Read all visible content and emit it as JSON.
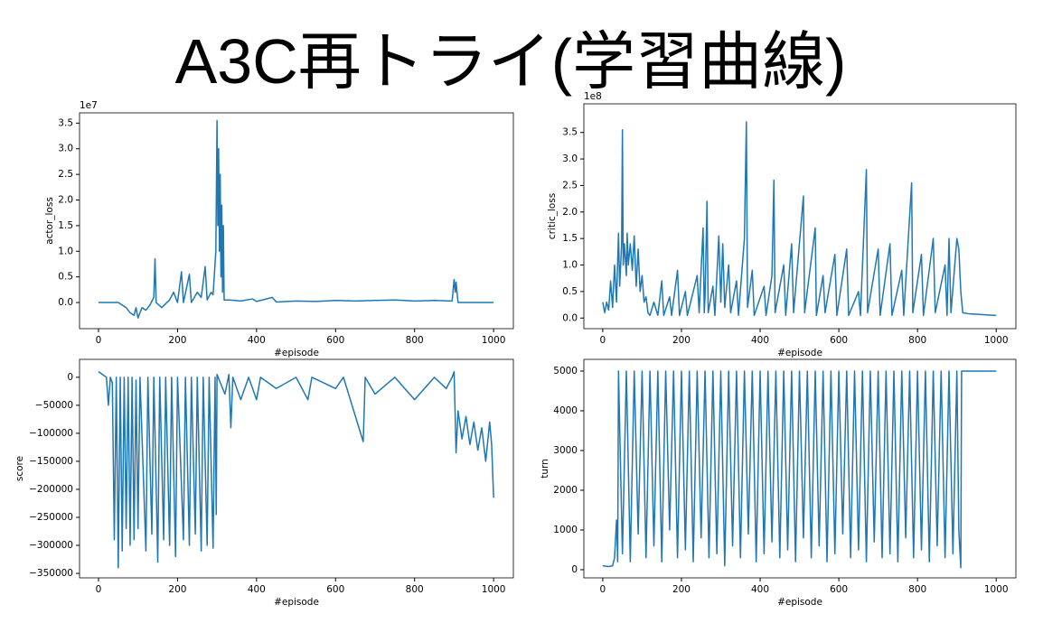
{
  "title": "A3C再トライ(学習曲線)",
  "chart_data": [
    {
      "type": "line",
      "xlabel": "#episode",
      "ylabel": "actor_loss",
      "y_offset_label": "1e7",
      "color": "#1f77b4",
      "xlim": [
        -48,
        1050
      ],
      "xticks": [
        0,
        200,
        400,
        600,
        800,
        1000
      ],
      "ylim": [
        -0.51,
        3.7
      ],
      "yticks": [
        {
          "value": 0,
          "label": "0.0"
        },
        {
          "value": 0.5,
          "label": "0.5"
        },
        {
          "value": 1,
          "label": "1.0"
        },
        {
          "value": 1.5,
          "label": "1.5"
        },
        {
          "value": 2,
          "label": "2.0"
        },
        {
          "value": 2.5,
          "label": "2.5"
        },
        {
          "value": 3,
          "label": "3.0"
        },
        {
          "value": 3.5,
          "label": "3.5"
        }
      ],
      "x": [
        0,
        50,
        70,
        80,
        90,
        95,
        100,
        110,
        120,
        130,
        140,
        143,
        146,
        160,
        180,
        190,
        200,
        210,
        215,
        230,
        235,
        250,
        260,
        270,
        275,
        285,
        290,
        297,
        300,
        302,
        304,
        306,
        308,
        310,
        312,
        314,
        316,
        318,
        330,
        360,
        390,
        400,
        420,
        440,
        450,
        500,
        550,
        600,
        650,
        700,
        750,
        800,
        850,
        895,
        900,
        903,
        905,
        908,
        910,
        1000
      ],
      "values": [
        0,
        0,
        -0.1,
        -0.2,
        -0.25,
        -0.1,
        -0.3,
        -0.1,
        -0.15,
        -0.05,
        0.1,
        0.85,
        0,
        -0.1,
        0.05,
        0.2,
        0,
        0.6,
        0,
        0.55,
        0,
        0.2,
        0.1,
        0.7,
        0.05,
        0.2,
        0.15,
        1.0,
        3.55,
        1.5,
        3.0,
        1.0,
        2.5,
        0.5,
        1.9,
        0.2,
        1.5,
        0.05,
        0.05,
        0.03,
        0.07,
        0.02,
        0.06,
        0.1,
        0.01,
        0.03,
        0.02,
        0.04,
        0.03,
        0.04,
        0.05,
        0.03,
        0.04,
        0.03,
        0.45,
        0.2,
        0.4,
        0.15,
        0,
        0
      ]
    },
    {
      "type": "line",
      "xlabel": "#episode",
      "ylabel": "critic_loss",
      "y_offset_label": "1e8",
      "color": "#1f77b4",
      "xlim": [
        -48,
        1050
      ],
      "xticks": [
        0,
        200,
        400,
        600,
        800,
        1000
      ],
      "ylim": [
        -0.2,
        4.04
      ],
      "yticks": [
        {
          "value": 0,
          "label": "0.0"
        },
        {
          "value": 0.5,
          "label": "0.5"
        },
        {
          "value": 1,
          "label": "1.0"
        },
        {
          "value": 1.5,
          "label": "1.5"
        },
        {
          "value": 2,
          "label": "2.0"
        },
        {
          "value": 2.5,
          "label": "2.5"
        },
        {
          "value": 3,
          "label": "3.0"
        },
        {
          "value": 3.5,
          "label": "3.5"
        }
      ],
      "x": [
        0,
        5,
        10,
        15,
        20,
        25,
        30,
        35,
        40,
        43,
        48,
        50,
        52,
        55,
        60,
        62,
        65,
        70,
        75,
        80,
        85,
        90,
        95,
        100,
        105,
        110,
        115,
        120,
        130,
        140,
        150,
        155,
        170,
        175,
        190,
        195,
        210,
        215,
        240,
        245,
        255,
        258,
        260,
        265,
        268,
        280,
        285,
        295,
        300,
        305,
        310,
        320,
        325,
        340,
        345,
        360,
        365,
        368,
        380,
        385,
        410,
        415,
        430,
        435,
        438,
        460,
        465,
        480,
        485,
        510,
        513,
        540,
        543,
        560,
        565,
        590,
        595,
        620,
        625,
        650,
        655,
        670,
        673,
        700,
        705,
        730,
        735,
        760,
        765,
        785,
        788,
        810,
        815,
        840,
        845,
        870,
        875,
        880,
        885,
        900,
        905,
        910,
        915,
        930,
        1000
      ],
      "values": [
        0.3,
        0.1,
        0.3,
        0.15,
        0.7,
        0.2,
        1.0,
        0.3,
        1.6,
        0.6,
        1.4,
        3.55,
        1.0,
        1.4,
        0.8,
        1.6,
        1.0,
        1.4,
        0.9,
        1.55,
        0.6,
        1.3,
        0.5,
        0.8,
        0.3,
        0.4,
        0.1,
        0.05,
        0.3,
        0.05,
        0.7,
        0.05,
        0.4,
        0.05,
        0.9,
        0.05,
        0.5,
        0.05,
        0.8,
        0.1,
        1.7,
        0.1,
        0.4,
        2.2,
        0.1,
        0.6,
        0.05,
        1.55,
        0.3,
        1.4,
        0.2,
        1.0,
        0.1,
        0.7,
        0.05,
        1.5,
        3.7,
        0.2,
        0.9,
        0.05,
        0.6,
        0.05,
        0.8,
        2.6,
        0.1,
        1.0,
        0.05,
        1.4,
        0.1,
        2.3,
        0.1,
        1.7,
        0.05,
        0.8,
        0.1,
        1.2,
        0.05,
        1.3,
        0.05,
        0.5,
        0.05,
        2.8,
        0.1,
        1.3,
        0.05,
        1.4,
        0.05,
        0.9,
        0.05,
        2.55,
        0.1,
        1.2,
        0.05,
        1.5,
        0.1,
        1.0,
        0.05,
        1.5,
        0.1,
        1.5,
        1.3,
        0.5,
        0.1,
        0.08,
        0.05
      ]
    },
    {
      "type": "line",
      "xlabel": "#episode",
      "ylabel": "score",
      "color": "#1f77b4",
      "xlim": [
        -48,
        1050
      ],
      "xticks": [
        0,
        200,
        400,
        600,
        800,
        1000
      ],
      "ylim": [
        -358000,
        32000
      ],
      "yticks": [
        0,
        {
          "value": -50000,
          "label": "−50000"
        },
        {
          "value": -100000,
          "label": "−100000"
        },
        {
          "value": -150000,
          "label": "−150000"
        },
        {
          "value": -200000,
          "label": "−200000"
        },
        {
          "value": -250000,
          "label": "−250000"
        },
        {
          "value": -300000,
          "label": "−300000"
        },
        {
          "value": -350000,
          "label": "−350000"
        }
      ],
      "x": [
        0,
        10,
        20,
        25,
        30,
        35,
        40,
        45,
        50,
        55,
        60,
        65,
        70,
        75,
        80,
        85,
        90,
        95,
        100,
        105,
        120,
        125,
        135,
        140,
        150,
        155,
        165,
        170,
        180,
        185,
        195,
        200,
        215,
        220,
        230,
        235,
        245,
        250,
        260,
        265,
        275,
        280,
        290,
        295,
        298,
        300,
        320,
        330,
        335,
        340,
        360,
        380,
        400,
        410,
        450,
        500,
        530,
        540,
        600,
        620,
        670,
        675,
        700,
        750,
        800,
        850,
        880,
        895,
        900,
        905,
        910,
        920,
        930,
        940,
        950,
        960,
        970,
        980,
        990,
        995,
        1000
      ],
      "values": [
        10000,
        5000,
        0,
        -50000,
        0,
        -10000,
        -290000,
        0,
        -340000,
        0,
        -310000,
        0,
        -270000,
        0,
        -300000,
        0,
        -290000,
        -5000,
        -270000,
        0,
        -310000,
        0,
        -280000,
        0,
        -330000,
        0,
        -290000,
        0,
        -300000,
        0,
        -320000,
        0,
        -290000,
        0,
        -300000,
        0,
        -280000,
        0,
        -310000,
        0,
        -300000,
        0,
        -305000,
        0,
        -245000,
        5000,
        -30000,
        5000,
        -90000,
        0,
        -40000,
        0,
        -40000,
        0,
        -20000,
        0,
        -40000,
        0,
        -20000,
        0,
        -115000,
        0,
        -30000,
        0,
        -40000,
        0,
        -20000,
        0,
        10000,
        -135000,
        -60000,
        -110000,
        -70000,
        -120000,
        -80000,
        -130000,
        -90000,
        -150000,
        -80000,
        -120000,
        -215000
      ]
    },
    {
      "type": "line",
      "xlabel": "#episode",
      "ylabel": "turn",
      "color": "#1f77b4",
      "xlim": [
        -48,
        1050
      ],
      "xticks": [
        0,
        200,
        400,
        600,
        800,
        1000
      ],
      "ylim": [
        -205,
        5295
      ],
      "yticks": [
        0,
        1000,
        2000,
        3000,
        4000,
        5000
      ],
      "x": [
        0,
        15,
        25,
        30,
        35,
        38,
        40,
        50,
        60,
        70,
        80,
        90,
        100,
        110,
        120,
        130,
        140,
        150,
        160,
        170,
        180,
        190,
        200,
        210,
        220,
        230,
        240,
        250,
        260,
        270,
        280,
        290,
        300,
        310,
        320,
        330,
        340,
        350,
        360,
        370,
        380,
        390,
        400,
        410,
        420,
        430,
        440,
        450,
        460,
        470,
        480,
        490,
        500,
        510,
        520,
        530,
        540,
        550,
        560,
        570,
        580,
        590,
        600,
        610,
        620,
        630,
        640,
        650,
        660,
        670,
        680,
        690,
        700,
        710,
        720,
        730,
        740,
        750,
        760,
        770,
        780,
        790,
        800,
        810,
        820,
        830,
        840,
        850,
        860,
        870,
        880,
        890,
        900,
        905,
        910,
        912,
        1000
      ],
      "values": [
        100,
        80,
        100,
        300,
        1250,
        200,
        5000,
        400,
        5000,
        200,
        5000,
        900,
        5000,
        300,
        5000,
        600,
        5000,
        200,
        5000,
        1000,
        5000,
        300,
        5000,
        500,
        5000,
        200,
        5000,
        800,
        5000,
        300,
        5000,
        400,
        5000,
        100,
        5000,
        600,
        5000,
        300,
        5000,
        900,
        5000,
        200,
        5000,
        400,
        5000,
        700,
        5000,
        300,
        5000,
        500,
        5000,
        200,
        5000,
        800,
        5000,
        300,
        5000,
        600,
        5000,
        200,
        5000,
        400,
        5000,
        900,
        5000,
        300,
        5000,
        500,
        5000,
        200,
        5000,
        700,
        5000,
        300,
        5000,
        400,
        5000,
        200,
        5000,
        800,
        5000,
        300,
        5000,
        500,
        5000,
        200,
        5000,
        600,
        5000,
        300,
        5000,
        400,
        5000,
        1000,
        50,
        5000,
        5000
      ]
    }
  ]
}
